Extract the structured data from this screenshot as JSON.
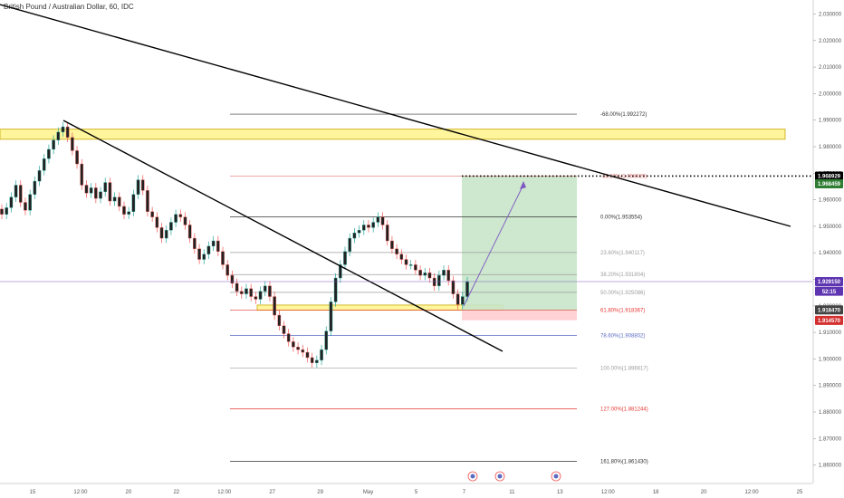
{
  "header": {
    "symbol_title": "British Pound / Australian Dollar, 60, IDC"
  },
  "colors": {
    "up_candle": "#26a69a",
    "down_candle": "#ef5350",
    "candle_body": "#222222",
    "zone_fill": "#fff59d",
    "zone_border": "#c8a800",
    "target_fill": "#c8e6c9",
    "stop_fill": "#ffcdd2",
    "trend_line": "#000000",
    "projection_arrow": "#7e57c2",
    "price_line": "#7e57c2"
  },
  "chart_data": {
    "type": "candlestick",
    "title": "British Pound / Australian Dollar, 60, IDC",
    "ylim": [
      1.855,
      2.035
    ],
    "y_ticks": [
      "2.030000",
      "2.020000",
      "2.010000",
      "2.000000",
      "1.990000",
      "1.980000",
      "1.970000",
      "1.960000",
      "1.950000",
      "1.940000",
      "1.930000",
      "1.920000",
      "1.910000",
      "1.900000",
      "1.890000",
      "1.880000",
      "1.870000",
      "1.860000"
    ],
    "x_ticks": [
      "15",
      "12:00",
      "20",
      "22",
      "12:00",
      "27",
      "29",
      "May",
      "5",
      "7",
      "11",
      "13",
      "12:00",
      "18",
      "20",
      "12:00",
      "25"
    ],
    "grid": false,
    "fibonacci_levels": [
      {
        "label": "-68.00%(1.992272)",
        "price": 1.992272,
        "color": "#333333"
      },
      {
        "label": "-38.20%(1.968929)",
        "price": 1.968929,
        "color": "#e57373"
      },
      {
        "label": "0.00%(1.953554)",
        "price": 1.953554,
        "color": "#333333"
      },
      {
        "label": "23.60%(1.940117)",
        "price": 1.940117,
        "color": "#9e9e9e"
      },
      {
        "label": "38.20%(1.931804)",
        "price": 1.931804,
        "color": "#9e9e9e"
      },
      {
        "label": "50.00%(1.925086)",
        "price": 1.925086,
        "color": "#9e9e9e"
      },
      {
        "label": "61.80%(1.918367)",
        "price": 1.918367,
        "color": "#e53935"
      },
      {
        "label": "78.60%(1.908802)",
        "price": 1.908802,
        "color": "#5c6bc0"
      },
      {
        "label": "100.00%(1.896617)",
        "price": 1.896617,
        "color": "#9e9e9e"
      },
      {
        "label": "127.00%(1.881244)",
        "price": 1.881244,
        "color": "#e53935"
      },
      {
        "label": "161.80%(1.861430)",
        "price": 1.86143,
        "color": "#333333"
      }
    ],
    "price_tags": [
      {
        "label": "1.968929",
        "price": 1.968929,
        "bg": "#000000",
        "dotted_line": true
      },
      {
        "label": "1.968459",
        "price": 1.966,
        "bg": "#2e7d32",
        "dotted_line": false
      },
      {
        "label": "1.929150",
        "price": 1.92915,
        "bg": "#5e35b1",
        "dotted_line": false,
        "solid_line": true
      },
      {
        "label": "52:15",
        "price": 1.9255,
        "bg": "#5e35b1",
        "dotted_line": false
      },
      {
        "label": "1.918470",
        "price": 1.9185,
        "bg": "#424242",
        "dotted_line": false
      },
      {
        "label": "1.914570",
        "price": 1.9145,
        "bg": "#d32f2f",
        "dotted_line": false
      }
    ],
    "zones": [
      {
        "name": "supply-zone",
        "y_top": 1.9866,
        "y_bottom": 1.9828
      },
      {
        "name": "demand-zone",
        "y_top": 1.9203,
        "y_bottom": 1.9184
      }
    ],
    "position": {
      "entry": 1.918367,
      "target": 1.968929,
      "stop": 1.91457
    },
    "close_series": [
      1.9545,
      1.957,
      1.961,
      1.9655,
      1.959,
      1.956,
      1.962,
      1.967,
      1.971,
      1.9755,
      1.979,
      1.9825,
      1.9855,
      1.9875,
      1.9835,
      1.9785,
      1.9735,
      1.9655,
      1.9625,
      1.9645,
      1.9605,
      1.963,
      1.9665,
      1.9595,
      1.961,
      1.9575,
      1.9545,
      1.9555,
      1.962,
      1.9675,
      1.9635,
      1.9555,
      1.9535,
      1.9495,
      1.9455,
      1.9485,
      1.9515,
      1.9545,
      1.9535,
      1.9505,
      1.9455,
      1.9415,
      1.9375,
      1.9395,
      1.9425,
      1.9445,
      1.9405,
      1.9355,
      1.9315,
      1.9285,
      1.9255,
      1.9245,
      1.9265,
      1.9235,
      1.9225,
      1.9255,
      1.9275,
      1.9235,
      1.9165,
      1.9125,
      1.9095,
      1.9065,
      1.9045,
      1.9035,
      1.9025,
      1.9005,
      1.8985,
      1.8995,
      1.9035,
      1.9105,
      1.9215,
      1.9305,
      1.9355,
      1.9405,
      1.9455,
      1.9475,
      1.9485,
      1.9505,
      1.9495,
      1.9515,
      1.9535,
      1.9505,
      1.9445,
      1.9415,
      1.9395,
      1.9375,
      1.9355,
      1.9355,
      1.9335,
      1.9315,
      1.9325,
      1.9305,
      1.9275,
      1.9315,
      1.9335,
      1.9295,
      1.9245,
      1.9205,
      1.9235,
      1.92915
    ]
  }
}
